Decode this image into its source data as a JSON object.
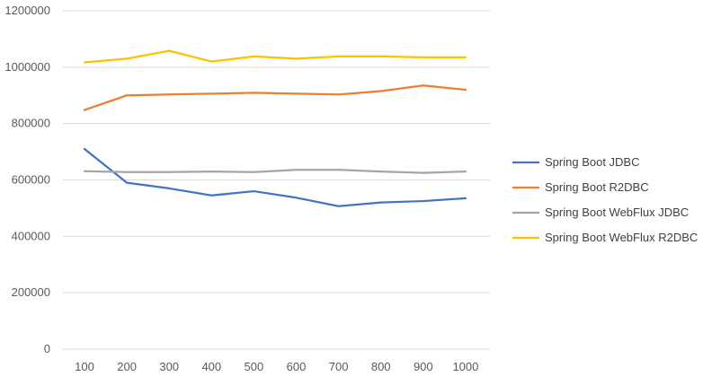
{
  "chart_data": {
    "type": "line",
    "title": "",
    "xlabel": "",
    "ylabel": "",
    "categories": [
      "100",
      "200",
      "300",
      "400",
      "500",
      "600",
      "700",
      "800",
      "900",
      "1000"
    ],
    "ylim": [
      0,
      1200000
    ],
    "yticks": [
      0,
      200000,
      400000,
      600000,
      800000,
      1000000,
      1200000
    ],
    "grid": "horizontal",
    "legend_position": "right",
    "series": [
      {
        "name": "Spring Boot JDBC",
        "color": "#4472C4",
        "values": [
          710000,
          590000,
          570000,
          545000,
          560000,
          537000,
          507000,
          520000,
          525000,
          535000
        ]
      },
      {
        "name": "Spring Boot R2DBC",
        "color": "#ED7D31",
        "values": [
          848000,
          900000,
          903000,
          906000,
          909000,
          906000,
          903000,
          915000,
          935000,
          920000
        ]
      },
      {
        "name": "Spring Boot WebFlux JDBC",
        "color": "#A5A5A5",
        "values": [
          631000,
          628000,
          628000,
          630000,
          628000,
          636000,
          636000,
          630000,
          625000,
          630000
        ]
      },
      {
        "name": "Spring Boot WebFlux R2DBC",
        "color": "#FFC000",
        "values": [
          1017000,
          1030000,
          1058000,
          1020000,
          1038000,
          1030000,
          1038000,
          1038000,
          1035000,
          1035000
        ]
      }
    ]
  }
}
